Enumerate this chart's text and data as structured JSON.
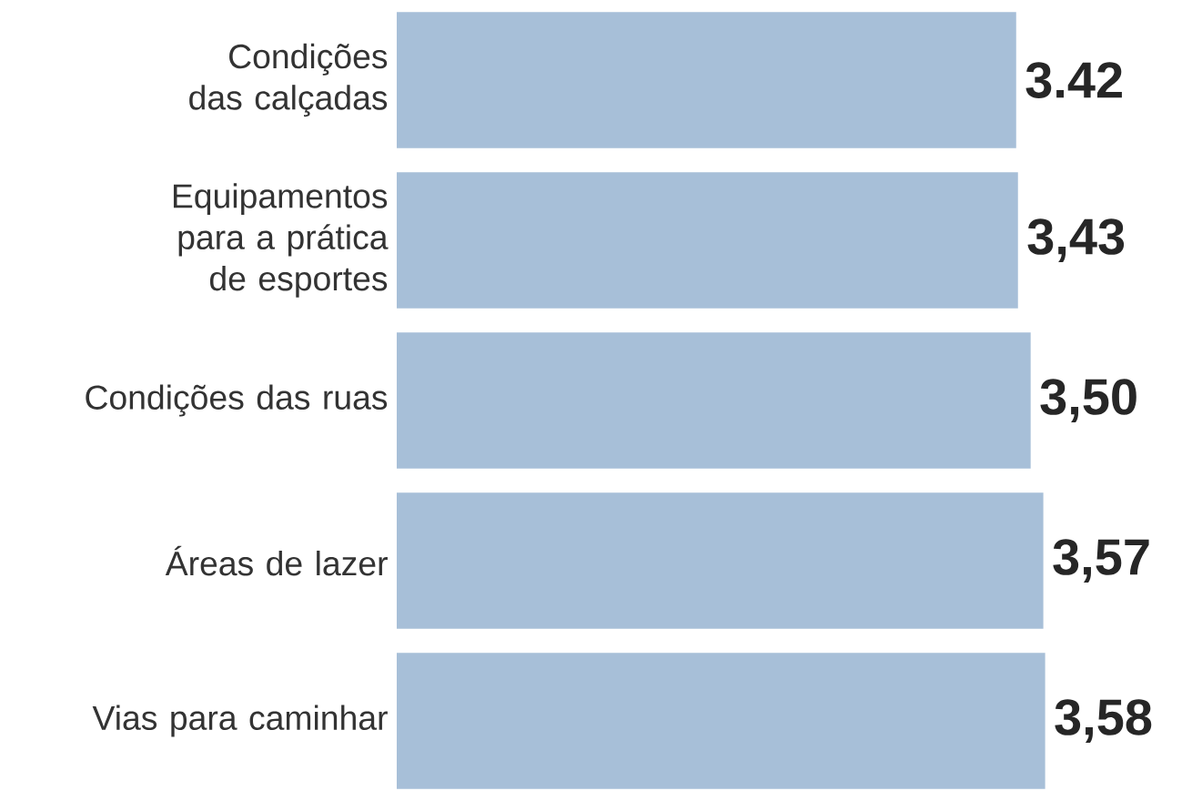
{
  "chart_data": {
    "type": "bar",
    "orientation": "horizontal",
    "categories": [
      "Condições das calçadas",
      "Equipamentos para a prática de esportes",
      "Condições das ruas",
      "Áreas de lazer",
      "Vias para caminhar"
    ],
    "values": [
      3.42,
      3.43,
      3.5,
      3.57,
      3.58
    ],
    "value_labels": [
      "3.42",
      "3,43",
      "3,50",
      "3,57",
      "3,58"
    ],
    "color": "#a7bfd8"
  }
}
